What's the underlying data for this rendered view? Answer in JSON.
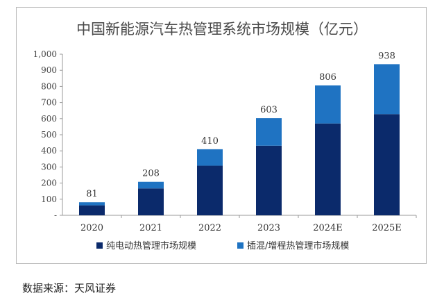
{
  "chart_data": {
    "type": "bar",
    "stacked": true,
    "title": "中国新能源汽车热管理系统市场规模（亿元）",
    "categories": [
      "2020",
      "2021",
      "2022",
      "2023",
      "2024E",
      "2025E"
    ],
    "series": [
      {
        "name": "纯电动热管理市场规模",
        "values": [
          62,
          167,
          308,
          432,
          570,
          628
        ],
        "color": "#0b2a6b"
      },
      {
        "name": "插混/增程热管理市场规模",
        "values": [
          19,
          41,
          102,
          171,
          236,
          310
        ],
        "color": "#1f73c2"
      }
    ],
    "totals": [
      81,
      208,
      410,
      603,
      806,
      938
    ],
    "ylim": [
      0,
      1000
    ],
    "yticks": [
      "-",
      "100",
      "200",
      "300",
      "400",
      "500",
      "600",
      "700",
      "800",
      "900",
      "1,000"
    ],
    "legend_position": "bottom",
    "grid": false
  },
  "source": "数据来源：天风证券"
}
